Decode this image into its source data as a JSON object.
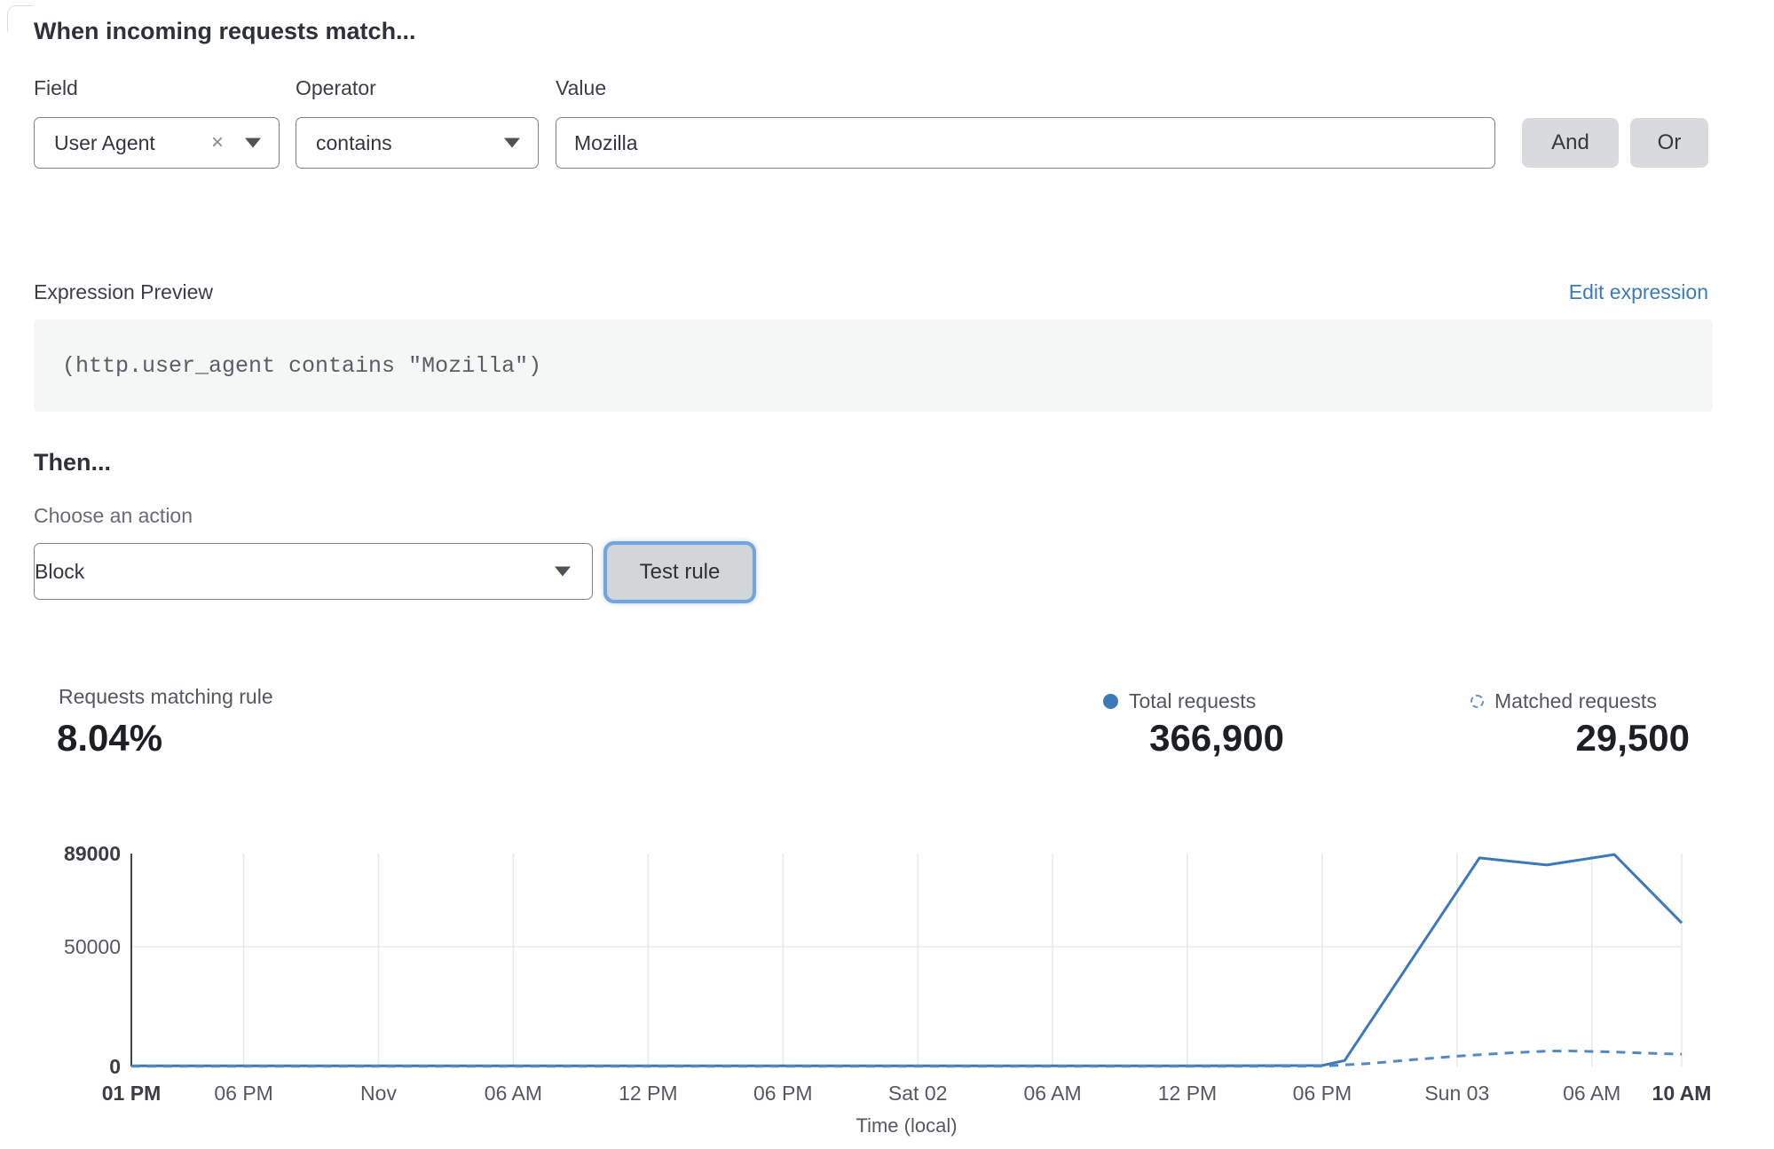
{
  "header": {
    "title": "When incoming requests match..."
  },
  "rule_builder": {
    "field": {
      "label": "Field",
      "value": "User Agent"
    },
    "operator": {
      "label": "Operator",
      "value": "contains"
    },
    "value": {
      "label": "Value",
      "value": "Mozilla"
    },
    "and_label": "And",
    "or_label": "Or",
    "clear_icon": "×"
  },
  "expression": {
    "label": "Expression Preview",
    "edit_link": "Edit expression",
    "code": "(http.user_agent contains \"Mozilla\")"
  },
  "then": {
    "title": "Then...",
    "action_label": "Choose an action",
    "action_value": "Block",
    "test_button": "Test rule"
  },
  "stats": {
    "matching_label": "Requests matching rule",
    "matching_value": "8.04%",
    "total_label": "Total requests",
    "total_value": "366,900",
    "matched_label": "Matched requests",
    "matched_value": "29,500"
  },
  "colors": {
    "total_line": "#3b79b8",
    "matched_line": "#4f8ac4",
    "grid": "#e8e8e8",
    "axis": "#44484c",
    "tick_text": "#55595d",
    "tick_text_bold": "#3a3e42",
    "link_blue": "#3d7abd"
  },
  "chart_data": {
    "type": "line",
    "title": "",
    "xlabel": "Time (local)",
    "ylabel": "",
    "ylim": [
      0,
      89000
    ],
    "yticks": [
      {
        "value": 0,
        "label": "0",
        "bold": true
      },
      {
        "value": 50000,
        "label": "50000",
        "bold": false
      },
      {
        "value": 89000,
        "label": "89000",
        "bold": true
      }
    ],
    "x_hours_range": [
      0,
      69
    ],
    "xticks": [
      {
        "hour": 0,
        "label": "01 PM",
        "bold": true
      },
      {
        "hour": 5,
        "label": "06 PM",
        "bold": false
      },
      {
        "hour": 11,
        "label": "Nov",
        "bold": false
      },
      {
        "hour": 17,
        "label": "06 AM",
        "bold": false
      },
      {
        "hour": 23,
        "label": "12 PM",
        "bold": false
      },
      {
        "hour": 29,
        "label": "06 PM",
        "bold": false
      },
      {
        "hour": 35,
        "label": "Sat 02",
        "bold": false
      },
      {
        "hour": 41,
        "label": "06 AM",
        "bold": false
      },
      {
        "hour": 47,
        "label": "12 PM",
        "bold": false
      },
      {
        "hour": 53,
        "label": "06 PM",
        "bold": false
      },
      {
        "hour": 59,
        "label": "Sun 03",
        "bold": false
      },
      {
        "hour": 65,
        "label": "06 AM",
        "bold": false
      },
      {
        "hour": 69,
        "label": "10 AM",
        "bold": true
      }
    ],
    "grid": "vertical-at-xticks, horizontal-at-50000",
    "legend_position": "top-right-above-chart",
    "series": [
      {
        "name": "Total requests",
        "style": "solid",
        "color": "#3b79b8",
        "points": [
          [
            0,
            300
          ],
          [
            5,
            300
          ],
          [
            11,
            300
          ],
          [
            17,
            300
          ],
          [
            23,
            300
          ],
          [
            29,
            300
          ],
          [
            35,
            300
          ],
          [
            41,
            300
          ],
          [
            47,
            300
          ],
          [
            53,
            400
          ],
          [
            54,
            2500
          ],
          [
            60,
            87200
          ],
          [
            61,
            86200
          ],
          [
            63,
            84200
          ],
          [
            66,
            88600
          ],
          [
            69,
            60000
          ]
        ]
      },
      {
        "name": "Matched requests",
        "style": "dashed",
        "color": "#4f8ac4",
        "points": [
          [
            0,
            80
          ],
          [
            5,
            80
          ],
          [
            11,
            80
          ],
          [
            17,
            80
          ],
          [
            23,
            80
          ],
          [
            29,
            80
          ],
          [
            35,
            80
          ],
          [
            41,
            80
          ],
          [
            47,
            80
          ],
          [
            53,
            150
          ],
          [
            55,
            1200
          ],
          [
            57,
            2800
          ],
          [
            59,
            4300
          ],
          [
            61,
            5500
          ],
          [
            63,
            6400
          ],
          [
            64,
            6500
          ],
          [
            66,
            6100
          ],
          [
            67,
            5700
          ],
          [
            69,
            5100
          ]
        ]
      }
    ]
  }
}
